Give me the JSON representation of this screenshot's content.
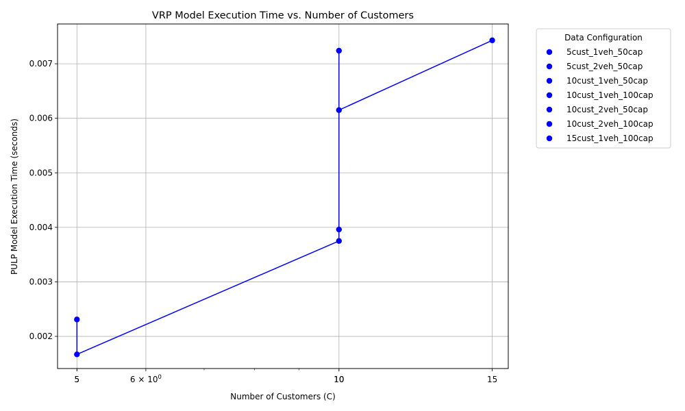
{
  "chart_data": {
    "type": "scatter",
    "title": "VRP Model Execution Time vs. Number of Customers",
    "xlabel": "Number of Customers (C)",
    "ylabel": "PULP Model Execution Time (seconds)",
    "x_scale": "log",
    "xlim": [
      4.75,
      15.65
    ],
    "ylim": [
      0.00141,
      0.00773
    ],
    "grid": true,
    "line_color": "#0000ff",
    "marker_color": "#0000ff",
    "x_ticks": [
      {
        "value": 5,
        "label": "5"
      },
      {
        "value": 6,
        "label": "6 × 10⁰",
        "base": "6 × 10",
        "exp": "0"
      },
      {
        "value": 10,
        "label": "10"
      },
      {
        "value": 15,
        "label": "15"
      }
    ],
    "x_tick_labels_repeated": [
      {
        "value": 5,
        "label": "5"
      },
      {
        "value": 10,
        "label": "10"
      }
    ],
    "x_minor_ticks": [
      7,
      8,
      9
    ],
    "y_ticks": [
      {
        "value": 0.002,
        "label": "0.002"
      },
      {
        "value": 0.003,
        "label": "0.003"
      },
      {
        "value": 0.004,
        "label": "0.004"
      },
      {
        "value": 0.005,
        "label": "0.005"
      },
      {
        "value": 0.006,
        "label": "0.006"
      },
      {
        "value": 0.007,
        "label": "0.007"
      }
    ],
    "line_path": [
      {
        "x": 5,
        "y": 0.00231
      },
      {
        "x": 5,
        "y": 0.00167
      },
      {
        "x": 10,
        "y": 0.00375
      },
      {
        "x": 10,
        "y": 0.00396
      },
      {
        "x": 10,
        "y": 0.00615
      },
      {
        "x": 10,
        "y": 0.00724
      },
      {
        "x": 10,
        "y": 0.00615
      },
      {
        "x": 15,
        "y": 0.00743
      }
    ],
    "series": [
      {
        "name": "5cust_1veh_50cap",
        "points": [
          {
            "x": 5,
            "y": 0.00231
          }
        ]
      },
      {
        "name": "5cust_2veh_50cap",
        "points": [
          {
            "x": 5,
            "y": 0.00167
          }
        ]
      },
      {
        "name": "10cust_1veh_50cap",
        "points": [
          {
            "x": 10,
            "y": 0.00375
          }
        ]
      },
      {
        "name": "10cust_1veh_100cap",
        "points": [
          {
            "x": 10,
            "y": 0.00396
          }
        ]
      },
      {
        "name": "10cust_2veh_50cap",
        "points": [
          {
            "x": 10,
            "y": 0.00615
          }
        ]
      },
      {
        "name": "10cust_2veh_100cap",
        "points": [
          {
            "x": 10,
            "y": 0.00724
          }
        ]
      },
      {
        "name": "15cust_1veh_100cap",
        "points": [
          {
            "x": 15,
            "y": 0.00743
          }
        ]
      }
    ],
    "legend": {
      "title": "Data Configuration",
      "placement": "outside-top-right"
    }
  }
}
